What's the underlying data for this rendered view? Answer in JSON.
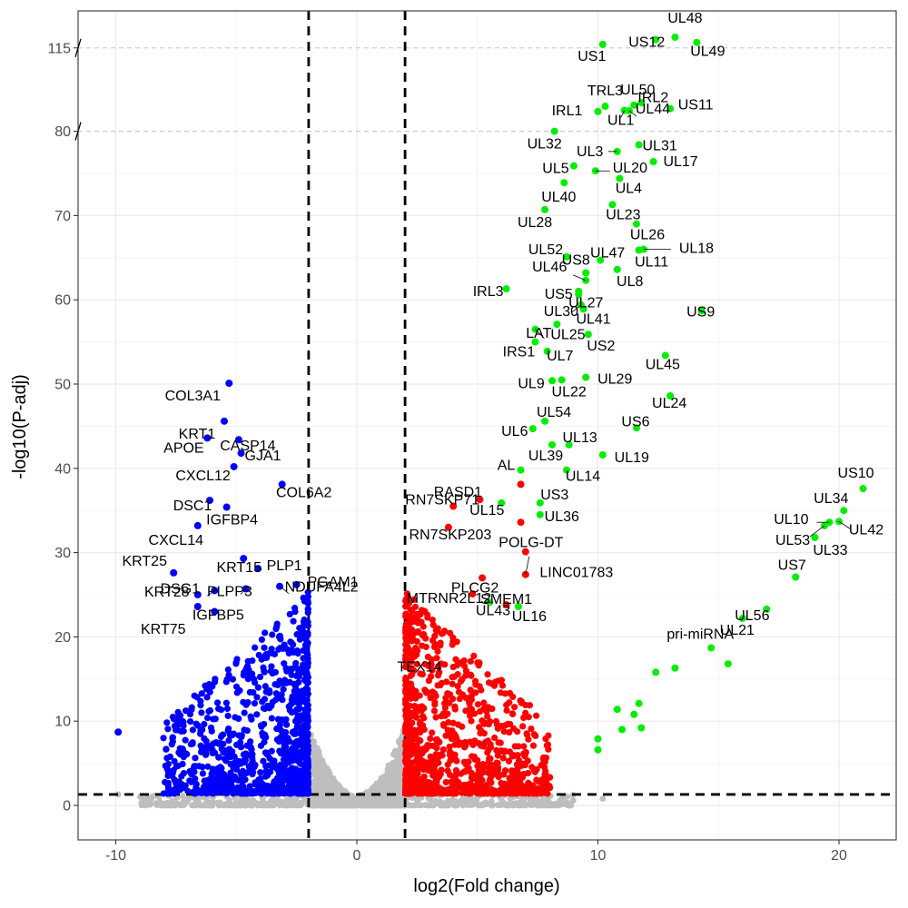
{
  "chart_data": {
    "type": "scatter",
    "title": "",
    "xlabel": "log2(Fold change)",
    "ylabel": "-log10(P-adj)",
    "xlim": [
      -11.5,
      22.5
    ],
    "ylim": [
      -4,
      140
    ],
    "x_ticks": [
      -10,
      0,
      10,
      20
    ],
    "x_tick_labels": [
      "-10",
      "0",
      "10",
      "20"
    ],
    "y_ticks": [
      0,
      10,
      20,
      30,
      40,
      50,
      60,
      70,
      80,
      115
    ],
    "y_tick_labels": [
      "0",
      "10",
      "20",
      "30",
      "40",
      "50",
      "60",
      "70",
      "80",
      "115"
    ],
    "axis_break": "broken y axis between 80 and 115",
    "fold_change_thresholds": [
      -2,
      2
    ],
    "padj_threshold_line": 1.3,
    "grid": true,
    "legend": "none",
    "colors": {
      "down": "#0000ff",
      "up": "#ff0000",
      "viral": "#00ee00",
      "ns": "#bebebe",
      "threshold": "#000000"
    },
    "series": [
      {
        "group": "down",
        "color": "#0000ff",
        "points": [
          {
            "x": -5.3,
            "y": 50.1,
            "label": "COL3A1"
          },
          {
            "x": -5.5,
            "y": 45.6,
            "label": "KRT1"
          },
          {
            "x": -4.9,
            "y": 43.4,
            "label": "CASP14"
          },
          {
            "x": -6.2,
            "y": 43.6,
            "label": "APOE"
          },
          {
            "x": -4.8,
            "y": 41.8,
            "label": "GJA1"
          },
          {
            "x": -5.1,
            "y": 40.2,
            "label": "CXCL12"
          },
          {
            "x": -3.1,
            "y": 38.1,
            "label": "COL6A2"
          },
          {
            "x": -6.1,
            "y": 36.2,
            "label": "DSC1"
          },
          {
            "x": -5.4,
            "y": 35.4,
            "label": "IGFBP4"
          },
          {
            "x": -6.6,
            "y": 33.2,
            "label": "CXCL14"
          },
          {
            "x": -4.7,
            "y": 29.3,
            "label": "KRT15"
          },
          {
            "x": -4.1,
            "y": 28.1,
            "label": "PLP1"
          },
          {
            "x": -7.6,
            "y": 27.6,
            "label": "KRT25"
          },
          {
            "x": -5.9,
            "y": 25.5,
            "label": "DSG1"
          },
          {
            "x": -2.5,
            "y": 26.2,
            "label": "PGAM1"
          },
          {
            "x": -4.6,
            "y": 25.7,
            "label": "PLPP3"
          },
          {
            "x": -6.6,
            "y": 25.0,
            "label": "KRT28"
          },
          {
            "x": -5.9,
            "y": 23.0,
            "label": "IGFBP5"
          },
          {
            "x": -3.2,
            "y": 26.0,
            "label": "NDUFA4L2"
          },
          {
            "x": -6.6,
            "y": 23.6,
            "label": "KRT75"
          },
          {
            "x": -9.9,
            "y": 8.7,
            "label": ""
          }
        ]
      },
      {
        "group": "up",
        "color": "#ff0000",
        "points": [
          {
            "x": 5.1,
            "y": 36.3,
            "label": "RASD1"
          },
          {
            "x": 4.0,
            "y": 35.5,
            "label": "RN7SKP71"
          },
          {
            "x": 3.8,
            "y": 33.0,
            "label": "RN7SKP203"
          },
          {
            "x": 7.0,
            "y": 30.1,
            "label": "POLG-DT"
          },
          {
            "x": 5.2,
            "y": 27.0,
            "label": "PLCG2"
          },
          {
            "x": 7.0,
            "y": 27.4,
            "label": "LINC01783"
          },
          {
            "x": 6.2,
            "y": 23.8,
            "label": "SMEM1"
          },
          {
            "x": 4.8,
            "y": 25.1,
            "label": "MTRNR2L12"
          },
          {
            "x": 2.9,
            "y": 13.4,
            "label": "TEX14"
          },
          {
            "x": 6.8,
            "y": 38.1,
            "label": ""
          },
          {
            "x": 6.8,
            "y": 33.6,
            "label": ""
          }
        ]
      },
      {
        "group": "viral",
        "color": "#00ee00",
        "points": [
          {
            "x": 13.2,
            "y": 119.5,
            "label": "UL48"
          },
          {
            "x": 12.4,
            "y": 118.5,
            "label": "US12"
          },
          {
            "x": 14.1,
            "y": 117.3,
            "label": "UL49"
          },
          {
            "x": 10.2,
            "y": 116.5,
            "label": "US1"
          },
          {
            "x": 11.8,
            "y": 92.0,
            "label": "UL50"
          },
          {
            "x": 10.3,
            "y": 90.5,
            "label": "TRL3"
          },
          {
            "x": 11.5,
            "y": 91.0,
            "label": "IRL2"
          },
          {
            "x": 13.0,
            "y": 89.5,
            "label": "US11"
          },
          {
            "x": 10.0,
            "y": 88.3,
            "label": "IRL1"
          },
          {
            "x": 11.1,
            "y": 88.8,
            "label": "UL1"
          },
          {
            "x": 11.3,
            "y": 88.6,
            "label": "UL44"
          },
          {
            "x": 8.2,
            "y": 80.0,
            "label": "UL32"
          },
          {
            "x": 10.8,
            "y": 77.6,
            "label": "UL3"
          },
          {
            "x": 11.7,
            "y": 78.4,
            "label": "UL31"
          },
          {
            "x": 12.3,
            "y": 76.4,
            "label": "UL17"
          },
          {
            "x": 9.0,
            "y": 75.9,
            "label": "UL5"
          },
          {
            "x": 9.9,
            "y": 75.3,
            "label": "UL20"
          },
          {
            "x": 8.6,
            "y": 73.9,
            "label": "UL40"
          },
          {
            "x": 10.9,
            "y": 74.4,
            "label": "UL4"
          },
          {
            "x": 10.6,
            "y": 71.3,
            "label": "UL23"
          },
          {
            "x": 7.8,
            "y": 70.7,
            "label": "UL28"
          },
          {
            "x": 11.6,
            "y": 69.0,
            "label": "UL26"
          },
          {
            "x": 11.9,
            "y": 66.0,
            "label": "UL18"
          },
          {
            "x": 8.7,
            "y": 65.1,
            "label": "UL52"
          },
          {
            "x": 10.1,
            "y": 64.7,
            "label": "UL47"
          },
          {
            "x": 11.7,
            "y": 65.9,
            "label": "UL11"
          },
          {
            "x": 9.5,
            "y": 63.2,
            "label": "US8"
          },
          {
            "x": 10.8,
            "y": 63.6,
            "label": "UL8"
          },
          {
            "x": 9.5,
            "y": 62.3,
            "label": "UL46"
          },
          {
            "x": 6.2,
            "y": 61.3,
            "label": "IRL3"
          },
          {
            "x": 9.2,
            "y": 61.0,
            "label": "US5"
          },
          {
            "x": 9.2,
            "y": 60.6,
            "label": "UL27"
          },
          {
            "x": 14.3,
            "y": 58.7,
            "label": "US9"
          },
          {
            "x": 9.3,
            "y": 59.4,
            "label": "UL30"
          },
          {
            "x": 9.4,
            "y": 58.9,
            "label": "UL41"
          },
          {
            "x": 8.3,
            "y": 57.1,
            "label": "LAT"
          },
          {
            "x": 7.4,
            "y": 56.5,
            "label": "UL25"
          },
          {
            "x": 9.6,
            "y": 55.9,
            "label": "US2"
          },
          {
            "x": 7.4,
            "y": 55.0,
            "label": "IRS1"
          },
          {
            "x": 7.9,
            "y": 53.9,
            "label": "UL7"
          },
          {
            "x": 12.8,
            "y": 53.4,
            "label": "UL45"
          },
          {
            "x": 9.5,
            "y": 50.8,
            "label": "UL29"
          },
          {
            "x": 8.1,
            "y": 50.4,
            "label": "UL9"
          },
          {
            "x": 8.5,
            "y": 50.5,
            "label": "UL22"
          },
          {
            "x": 13.0,
            "y": 48.6,
            "label": "UL24"
          },
          {
            "x": 7.8,
            "y": 45.6,
            "label": "UL54"
          },
          {
            "x": 7.3,
            "y": 44.7,
            "label": "UL6"
          },
          {
            "x": 11.6,
            "y": 44.8,
            "label": "US6"
          },
          {
            "x": 8.1,
            "y": 42.8,
            "label": "UL39"
          },
          {
            "x": 8.8,
            "y": 42.8,
            "label": "UL13"
          },
          {
            "x": 10.2,
            "y": 41.6,
            "label": "UL19"
          },
          {
            "x": 6.8,
            "y": 39.8,
            "label": "AL"
          },
          {
            "x": 8.7,
            "y": 39.8,
            "label": "UL14"
          },
          {
            "x": 7.6,
            "y": 35.9,
            "label": "US3"
          },
          {
            "x": 6.0,
            "y": 35.9,
            "label": "UL15"
          },
          {
            "x": 7.6,
            "y": 34.5,
            "label": "UL36"
          },
          {
            "x": 21.0,
            "y": 37.6,
            "label": "US10"
          },
          {
            "x": 20.2,
            "y": 35.0,
            "label": "UL34"
          },
          {
            "x": 19.6,
            "y": 33.6,
            "label": "UL10"
          },
          {
            "x": 20.0,
            "y": 33.7,
            "label": "UL42"
          },
          {
            "x": 19.4,
            "y": 33.2,
            "label": "UL53"
          },
          {
            "x": 19.0,
            "y": 31.8,
            "label": "UL33"
          },
          {
            "x": 18.2,
            "y": 27.1,
            "label": "US7"
          },
          {
            "x": 17.0,
            "y": 23.3,
            "label": "UL56"
          },
          {
            "x": 16.0,
            "y": 22.2,
            "label": "UL21"
          },
          {
            "x": 14.7,
            "y": 18.7,
            "label": "pri-miRNA"
          },
          {
            "x": 5.5,
            "y": 24.1,
            "label": "UL43"
          },
          {
            "x": 6.7,
            "y": 23.6,
            "label": "UL16"
          },
          {
            "x": 13.2,
            "y": 16.3,
            "label": ""
          },
          {
            "x": 12.4,
            "y": 15.8,
            "label": ""
          },
          {
            "x": 15.4,
            "y": 16.8,
            "label": ""
          },
          {
            "x": 11.7,
            "y": 12.1,
            "label": ""
          },
          {
            "x": 11.5,
            "y": 10.8,
            "label": ""
          },
          {
            "x": 10.8,
            "y": 11.4,
            "label": ""
          },
          {
            "x": 10.0,
            "y": 7.9,
            "label": ""
          },
          {
            "x": 10.0,
            "y": 6.6,
            "label": ""
          },
          {
            "x": 11.0,
            "y": 9.0,
            "label": ""
          },
          {
            "x": 11.8,
            "y": 9.2,
            "label": ""
          }
        ]
      }
    ]
  }
}
